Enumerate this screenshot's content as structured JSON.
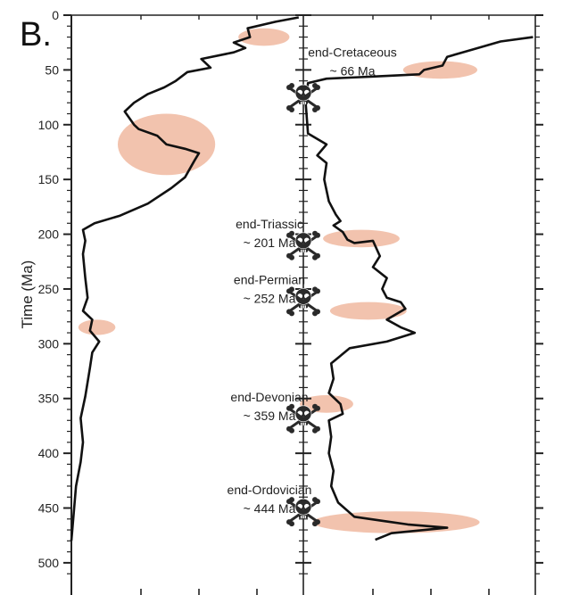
{
  "panel_label": "B.",
  "colors": {
    "curve": "#111111",
    "highlight": "#f0b8a0",
    "axis": "#222222"
  },
  "chart_data": {
    "type": "line",
    "title": "",
    "ylabel": "Time (Ma)",
    "ylim": [
      0,
      510
    ],
    "y_inverted": true,
    "y_ticks": [
      0,
      50,
      100,
      150,
      200,
      250,
      300,
      350,
      400,
      450,
      500
    ],
    "y_tick_labels": [
      "0",
      "50",
      "100",
      "150",
      "200",
      "250",
      "300",
      "350",
      "400",
      "450",
      "500"
    ],
    "x_ticks": [
      0.3,
      0.55,
      0.8,
      1.3,
      1.55,
      1.8
    ],
    "xlim": [
      0,
      2.0
    ],
    "grid": false,
    "legend": "none",
    "series": [
      {
        "panel": "left",
        "points": [
          [
            0.98,
            2
          ],
          [
            0.88,
            6
          ],
          [
            0.76,
            12
          ],
          [
            0.77,
            20
          ],
          [
            0.7,
            25
          ],
          [
            0.75,
            30
          ],
          [
            0.7,
            34
          ],
          [
            0.56,
            40
          ],
          [
            0.6,
            48
          ],
          [
            0.5,
            52
          ],
          [
            0.45,
            60
          ],
          [
            0.4,
            66
          ],
          [
            0.33,
            72
          ],
          [
            0.27,
            80
          ],
          [
            0.23,
            88
          ],
          [
            0.27,
            100
          ],
          [
            0.29,
            104
          ],
          [
            0.37,
            110
          ],
          [
            0.41,
            118
          ],
          [
            0.49,
            122
          ],
          [
            0.55,
            126
          ],
          [
            0.53,
            133
          ],
          [
            0.49,
            148
          ],
          [
            0.43,
            158
          ],
          [
            0.33,
            172
          ],
          [
            0.21,
            183
          ],
          [
            0.1,
            190
          ],
          [
            0.05,
            196
          ],
          [
            0.06,
            206
          ],
          [
            0.05,
            218
          ],
          [
            0.06,
            240
          ],
          [
            0.07,
            258
          ],
          [
            0.05,
            270
          ],
          [
            0.09,
            278
          ],
          [
            0.08,
            288
          ],
          [
            0.12,
            298
          ],
          [
            0.09,
            308
          ],
          [
            0.08,
            322
          ],
          [
            0.06,
            348
          ],
          [
            0.04,
            368
          ],
          [
            0.05,
            390
          ],
          [
            0.04,
            408
          ],
          [
            0.02,
            430
          ],
          [
            0.01,
            455
          ],
          [
            0.0,
            480
          ]
        ]
      },
      {
        "panel": "right",
        "points": [
          [
            1.99,
            20
          ],
          [
            1.85,
            24
          ],
          [
            1.72,
            32
          ],
          [
            1.62,
            38
          ],
          [
            1.6,
            46
          ],
          [
            1.52,
            50
          ],
          [
            1.5,
            54
          ],
          [
            1.3,
            56
          ],
          [
            1.2,
            57
          ],
          [
            1.1,
            58
          ],
          [
            1.02,
            62
          ],
          [
            1.01,
            80
          ],
          [
            1.02,
            108
          ],
          [
            1.1,
            118
          ],
          [
            1.06,
            128
          ],
          [
            1.1,
            135
          ],
          [
            1.09,
            150
          ],
          [
            1.11,
            170
          ],
          [
            1.14,
            182
          ],
          [
            1.16,
            188
          ],
          [
            1.13,
            192
          ],
          [
            1.17,
            198
          ],
          [
            1.19,
            205
          ],
          [
            1.22,
            208
          ],
          [
            1.3,
            206
          ],
          [
            1.33,
            220
          ],
          [
            1.3,
            230
          ],
          [
            1.36,
            240
          ],
          [
            1.34,
            250
          ],
          [
            1.36,
            258
          ],
          [
            1.42,
            262
          ],
          [
            1.44,
            268
          ],
          [
            1.36,
            278
          ],
          [
            1.42,
            285
          ],
          [
            1.48,
            290
          ],
          [
            1.36,
            298
          ],
          [
            1.2,
            304
          ],
          [
            1.12,
            318
          ],
          [
            1.13,
            332
          ],
          [
            1.11,
            345
          ],
          [
            1.16,
            355
          ],
          [
            1.17,
            364
          ],
          [
            1.11,
            370
          ],
          [
            1.12,
            385
          ],
          [
            1.11,
            400
          ],
          [
            1.13,
            416
          ],
          [
            1.12,
            430
          ],
          [
            1.15,
            445
          ],
          [
            1.22,
            458
          ],
          [
            1.35,
            462
          ],
          [
            1.45,
            465
          ],
          [
            1.62,
            468
          ],
          [
            1.38,
            473
          ],
          [
            1.31,
            479
          ]
        ]
      }
    ],
    "highlights": [
      {
        "panel": "left",
        "y_center": 20,
        "y_span": 16,
        "x_center": 0.83,
        "x_span": 0.22
      },
      {
        "panel": "left",
        "y_center": 118,
        "y_span": 56,
        "x_center": 0.41,
        "x_span": 0.42
      },
      {
        "panel": "left",
        "y_center": 285,
        "y_span": 14,
        "x_center": 0.11,
        "x_span": 0.16
      },
      {
        "panel": "right",
        "y_center": 50,
        "y_span": 16,
        "x_center": 1.59,
        "x_span": 0.32
      },
      {
        "panel": "right",
        "y_center": 204,
        "y_span": 16,
        "x_center": 1.25,
        "x_span": 0.33
      },
      {
        "panel": "right",
        "y_center": 270,
        "y_span": 16,
        "x_center": 1.28,
        "x_span": 0.33
      },
      {
        "panel": "right",
        "y_center": 355,
        "y_span": 16,
        "x_center": 1.1,
        "x_span": 0.23
      },
      {
        "panel": "right",
        "y_center": 463,
        "y_span": 20,
        "x_center": 1.4,
        "x_span": 0.72
      }
    ],
    "annotations": [
      {
        "name": "end-Cretaceous",
        "age": "~ 66 Ma",
        "y": 66
      },
      {
        "name": "end-Triassic",
        "age": "~ 201 Ma",
        "y": 201
      },
      {
        "name": "end-Permian",
        "age": "~ 252 Ma",
        "y": 252
      },
      {
        "name": "end-Devonian",
        "age": "~ 359 Ma",
        "y": 359
      },
      {
        "name": "end-Ordovician",
        "age": "~ 444 Ma",
        "y": 444
      }
    ],
    "marker_icon": "skull-and-crossbones-icon"
  }
}
